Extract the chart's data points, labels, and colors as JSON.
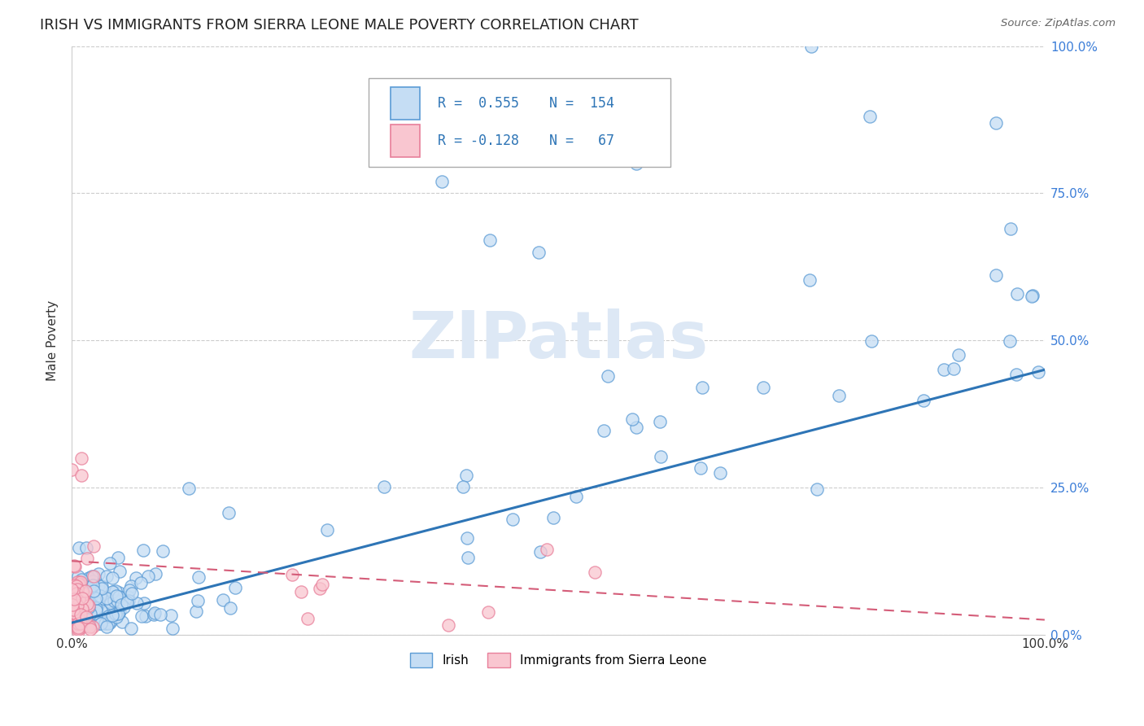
{
  "title": "IRISH VS IMMIGRANTS FROM SIERRA LEONE MALE POVERTY CORRELATION CHART",
  "source": "Source: ZipAtlas.com",
  "ylabel": "Male Poverty",
  "color_irish_fill": "#c5ddf4",
  "color_irish_edge": "#5b9bd5",
  "color_irish_line": "#2e75b6",
  "color_sierra_fill": "#f9c6d0",
  "color_sierra_edge": "#e87f9a",
  "color_sierra_line": "#d45c78",
  "watermark_color": "#dde8f5",
  "r_irish": 0.555,
  "n_irish": 154,
  "r_sierra": -0.128,
  "n_sierra": 67
}
